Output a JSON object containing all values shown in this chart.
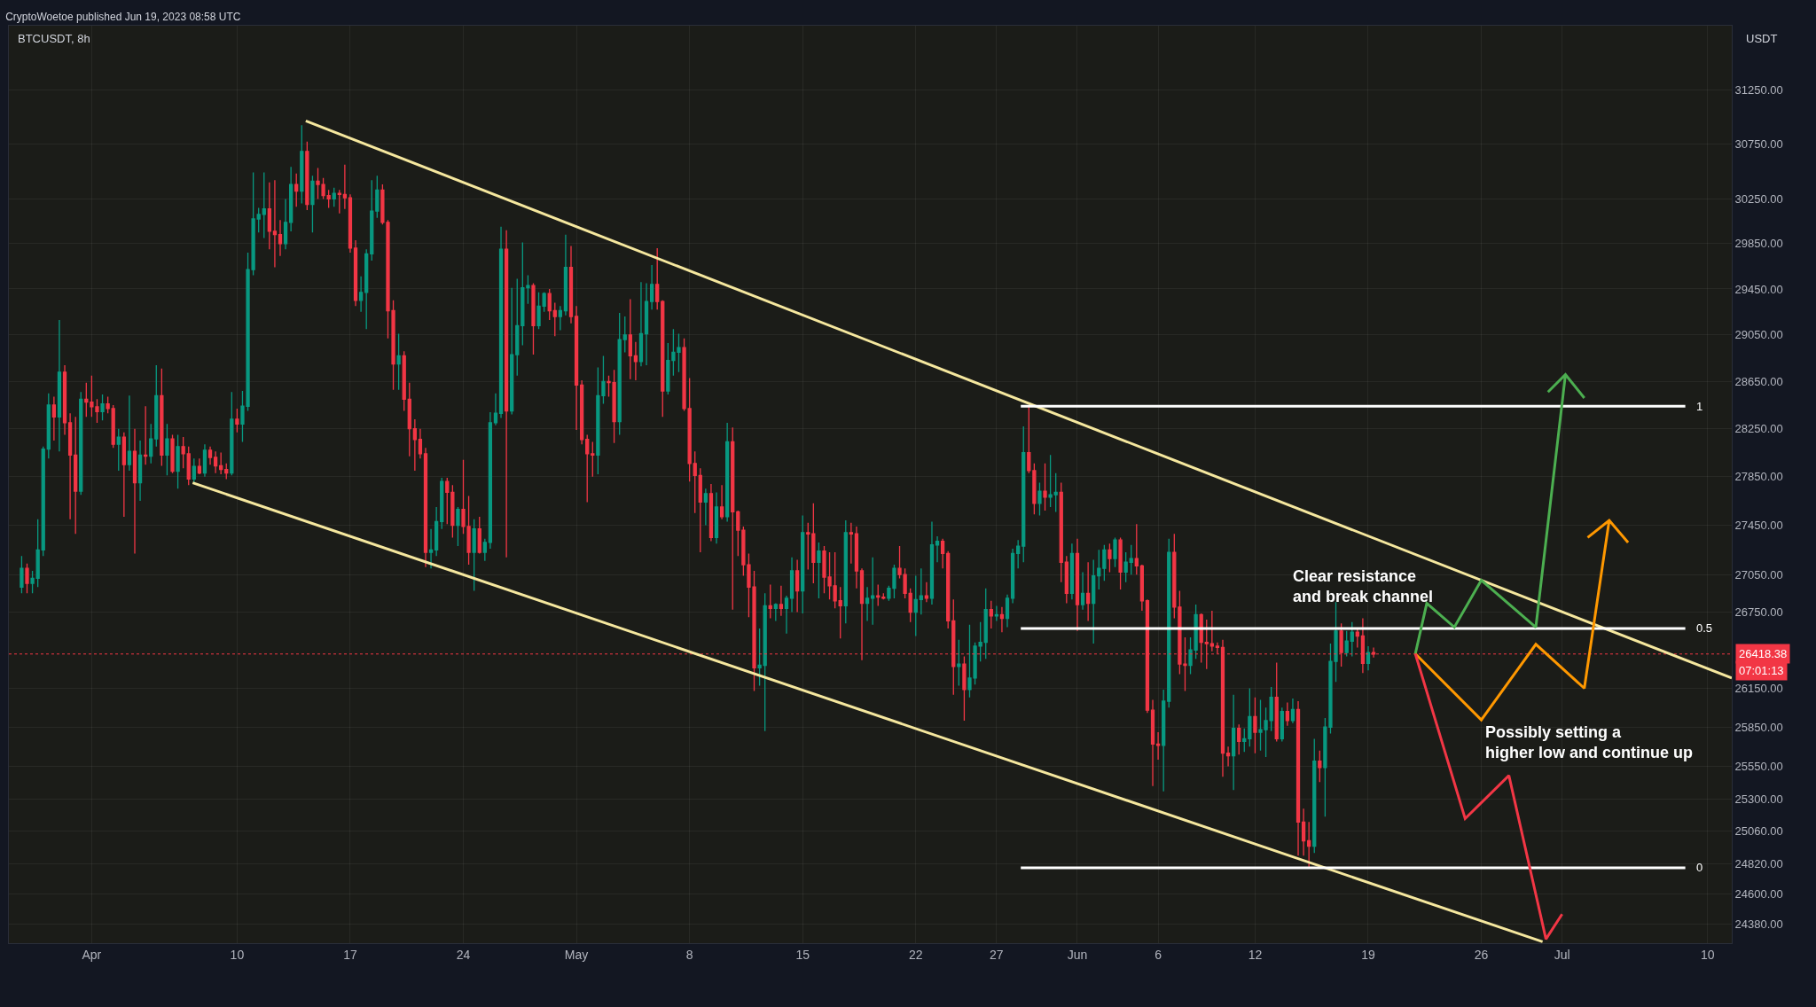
{
  "chart_data": {
    "type": "candlestick",
    "title": "CryptoWoetoe published Jun 19, 2023 08:58 UTC",
    "subtitle": "BTCUSDT, 8h",
    "ylabel": "USDT",
    "colors": [
      "#089981",
      "#f23645",
      "#089981",
      "#089981",
      "#089981",
      "#089981",
      "#f23645",
      "#089981",
      "#f23645",
      "#f23645",
      "#f23645",
      "#089981",
      "#f23645",
      "#f23645",
      "#f23645",
      "#089981",
      "#f23645",
      "#f23645",
      "#089981",
      "#f23645",
      "#089981",
      "#f23645",
      "#089981",
      "#f23645",
      "#089981",
      "#089981",
      "#f23645",
      "#089981",
      "#f23645",
      "#089981",
      "#f23645",
      "#f23645",
      "#089981",
      "#f23645",
      "#089981",
      "#f23645",
      "#f23645",
      "#f23645",
      "#f23645",
      "#089981",
      "#f23645",
      "#089981",
      "#089981",
      "#089981",
      "#089981",
      "#089981",
      "#f23645",
      "#f23645",
      "#f23645",
      "#089981",
      "#089981",
      "#f23645",
      "#089981",
      "#f23645",
      "#089981",
      "#f23645",
      "#f23645",
      "#f23645",
      "#089981",
      "#f23645",
      "#f23645",
      "#f23645",
      "#f23645",
      "#089981",
      "#089981",
      "#089981",
      "#089981",
      "#f23645",
      "#f23645",
      "#f23645",
      "#089981",
      "#f23645",
      "#f23645",
      "#f23645",
      "#f23645",
      "#f23645",
      "#089981",
      "#089981",
      "#089981",
      "#f23645",
      "#f23645",
      "#089981",
      "#f23645",
      "#f23645",
      "#089981",
      "#f23645",
      "#089981",
      "#089981",
      "#089981",
      "#089981",
      "#f23645",
      "#089981",
      "#089981",
      "#089981",
      "#089981",
      "#f23645",
      "#089981",
      "#089981",
      "#f23645",
      "#f23645",
      "#089981",
      "#089981",
      "#f23645",
      "#f23645",
      "#f23645",
      "#f23645",
      "#f23645",
      "#089981",
      "#089981",
      "#f23645",
      "#f23645",
      "#089981",
      "#089981",
      "#f23645",
      "#f23645",
      "#089981",
      "#089981",
      "#089981",
      "#f23645",
      "#f23645",
      "#089981",
      "#089981",
      "#089981",
      "#f23645",
      "#f23645",
      "#f23645",
      "#f23645",
      "#089981",
      "#f23645",
      "#089981",
      "#f23645",
      "#089981",
      "#f23645",
      "#f23645",
      "#f23645",
      "#f23645",
      "#f23645",
      "#089981",
      "#089981",
      "#f23645",
      "#089981",
      "#f23645",
      "#089981",
      "#089981",
      "#f23645",
      "#089981",
      "#f23645",
      "#f23645",
      "#089981",
      "#f23645",
      "#f23645",
      "#f23645",
      "#f23645",
      "#089981",
      "#f23645",
      "#f23645",
      "#f23645",
      "#089981",
      "#089981",
      "#f23645",
      "#f23645",
      "#089981",
      "#089981",
      "#f23645",
      "#f23645",
      "#f23645",
      "#089981",
      "#089981",
      "#f23645",
      "#089981",
      "#089981",
      "#f23645",
      "#f23645",
      "#f23645",
      "#089981",
      "#f23645",
      "#089981",
      "#089981",
      "#089981",
      "#089981",
      "#f23645",
      "#089981",
      "#f23645",
      "#089981",
      "#089981",
      "#089981",
      "#089981",
      "#f23645",
      "#f23645",
      "#089981",
      "#f23645",
      "#089981",
      "#089981",
      "#f23645",
      "#f23645",
      "#089981",
      "#f23645",
      "#089981",
      "#f23645",
      "#089981",
      "#089981",
      "#089981",
      "#f23645",
      "#089981",
      "#f23645",
      "#089981",
      "#089981",
      "#f23645",
      "#f23645",
      "#f23645",
      "#f23645",
      "#f23645",
      "#089981",
      "#089981",
      "#f23645",
      "#f23645",
      "#f23645",
      "#089981",
      "#089981",
      "#f23645",
      "#f23645",
      "#f23645",
      "#f23645",
      "#f23645",
      "#f23645",
      "#089981",
      "#f23645",
      "#089981",
      "#089981",
      "#f23645",
      "#089981",
      "#089981",
      "#089981",
      "#f23645",
      "#089981",
      "#f23645",
      "#089981",
      "#f23645",
      "#f23645",
      "#f23645",
      "#089981",
      "#f23645",
      "#089981",
      "#089981",
      "#089981",
      "#f23645",
      "#089981",
      "#089981",
      "#f23645",
      "#f23645",
      "#089981",
      "#f23645"
    ],
    "log": true,
    "grid": true,
    "xlim": [
      "2023-03-26T21:00",
      "2023-07-11T12:00"
    ],
    "ylim": [
      24240,
      31850
    ],
    "xticks": [
      {
        "value": "2023-04-01",
        "label": "Apr"
      },
      {
        "value": "2023-04-10",
        "label": "10"
      },
      {
        "value": "2023-04-17",
        "label": "17"
      },
      {
        "value": "2023-04-24",
        "label": "24"
      },
      {
        "value": "2023-05-01",
        "label": "May"
      },
      {
        "value": "2023-05-08",
        "label": "8"
      },
      {
        "value": "2023-05-15",
        "label": "15"
      },
      {
        "value": "2023-05-22",
        "label": "22"
      },
      {
        "value": "2023-05-27",
        "label": "27"
      },
      {
        "value": "2023-06-01",
        "label": "Jun"
      },
      {
        "value": "2023-06-06",
        "label": "6"
      },
      {
        "value": "2023-06-12",
        "label": "12"
      },
      {
        "value": "2023-06-19",
        "label": "19"
      },
      {
        "value": "2023-06-26",
        "label": "26"
      },
      {
        "value": "2023-07-01",
        "label": "Jul"
      },
      {
        "value": "2023-07-10",
        "label": "10"
      }
    ],
    "yticks": [
      {
        "value": 24380,
        "label": "24380.00"
      },
      {
        "value": 24600,
        "label": "24600.00"
      },
      {
        "value": 24820,
        "label": "24820.00"
      },
      {
        "value": 25060,
        "label": "25060.00"
      },
      {
        "value": 25300,
        "label": "25300.00"
      },
      {
        "value": 25550,
        "label": "25550.00"
      },
      {
        "value": 25850,
        "label": "25850.00"
      },
      {
        "value": 26150,
        "label": "26150.00"
      },
      {
        "value": 26750,
        "label": "26750.00"
      },
      {
        "value": 27050,
        "label": "27050.00"
      },
      {
        "value": 27450,
        "label": "27450.00"
      },
      {
        "value": 27850,
        "label": "27850.00"
      },
      {
        "value": 28250,
        "label": "28250.00"
      },
      {
        "value": 28650,
        "label": "28650.00"
      },
      {
        "value": 29050,
        "label": "29050.00"
      },
      {
        "value": 29450,
        "label": "29450.00"
      },
      {
        "value": 29850,
        "label": "29850.00"
      },
      {
        "value": 30250,
        "label": "30250.00"
      },
      {
        "value": 30750,
        "label": "30750.00"
      },
      {
        "value": 31250,
        "label": "31250.00"
      }
    ],
    "ref_lines": [
      {
        "axis": "y",
        "value": 26418.38,
        "label": "26418.38",
        "color": "#f23645",
        "line_style": "dotted"
      }
    ],
    "annotations": [
      "Clear resistance\nand break channel",
      "Possibly setting a\nhigher low and continue up",
      "07:01:13"
    ],
    "series": [
      {
        "type": "line",
        "color": "#f5e79e",
        "x": [
          "2023-04-14T06:00",
          "2023-07-11T12:00"
        ],
        "values": [
          30960,
          26230
        ]
      },
      {
        "type": "line",
        "color": "#f5e79e",
        "x": [
          "2023-04-07T06:00",
          "2023-06-29T19:00"
        ],
        "values": [
          27800,
          24250
        ]
      },
      {
        "type": "line",
        "name": "1",
        "color": "#ffffff",
        "x": [
          "2023-05-28T12:00",
          "2023-07-08T15:00"
        ],
        "values": [
          28440,
          28440
        ]
      },
      {
        "type": "line",
        "name": "0.5",
        "color": "#ffffff",
        "x": [
          "2023-05-28T12:00",
          "2023-07-08T15:00"
        ],
        "values": [
          26620,
          26620
        ]
      },
      {
        "type": "line",
        "name": "0",
        "color": "#ffffff",
        "x": [
          "2023-05-28T12:00",
          "2023-07-08T15:00"
        ],
        "values": [
          24790,
          24790
        ]
      },
      {
        "type": "line",
        "color": "#4caf50",
        "x": [
          "2023-06-21T22:00",
          "2023-06-22T15:00",
          "2023-06-24T08:00",
          "2023-06-26T00:00",
          "2023-06-29T09:00",
          "2023-07-01T05:00",
          "2023-06-30T03:00",
          "2023-07-01T05:00",
          "2023-07-02T09:00"
        ],
        "values": [
          26420,
          26820,
          26630,
          27005,
          26630,
          28710,
          28560,
          28710,
          28510
        ]
      },
      {
        "type": "line",
        "color": "#ff9800",
        "x": [
          "2023-06-21T22:00",
          "2023-06-26T00:00",
          "2023-06-29T09:00",
          "2023-07-02T09:00",
          "2023-07-03T22:00",
          "2023-07-02T14:00",
          "2023-07-03T22:00",
          "2023-07-05T02:00"
        ],
        "values": [
          26420,
          25905,
          26495,
          26150,
          27490,
          27350,
          27490,
          27310
        ]
      },
      {
        "type": "line",
        "color": "#f23645",
        "x": [
          "2023-06-21T22:00",
          "2023-06-25T00:00",
          "2023-06-27T17:00",
          "2023-06-30T00:00",
          "2023-07-01T00:00"
        ],
        "values": [
          26420,
          25155,
          25480,
          24270,
          24450
        ]
      }
    ],
    "x": [
      "2023-03-27T16:00",
      "2023-03-28T00:00",
      "2023-03-28T08:00",
      "2023-03-28T16:00",
      "2023-03-29T00:00",
      "2023-03-29T08:00",
      "2023-03-29T16:00",
      "2023-03-30T00:00",
      "2023-03-30T08:00",
      "2023-03-30T16:00",
      "2023-03-31T00:00",
      "2023-03-31T08:00",
      "2023-03-31T16:00",
      "2023-04-01T00:00",
      "2023-04-01T08:00",
      "2023-04-01T16:00",
      "2023-04-02T00:00",
      "2023-04-02T08:00",
      "2023-04-02T16:00",
      "2023-04-03T00:00",
      "2023-04-03T08:00",
      "2023-04-03T16:00",
      "2023-04-04T00:00",
      "2023-04-04T08:00",
      "2023-04-04T16:00",
      "2023-04-05T00:00",
      "2023-04-05T08:00",
      "2023-04-05T16:00",
      "2023-04-06T00:00",
      "2023-04-06T08:00",
      "2023-04-06T16:00",
      "2023-04-07T00:00",
      "2023-04-07T08:00",
      "2023-04-07T16:00",
      "2023-04-08T00:00",
      "2023-04-08T08:00",
      "2023-04-08T16:00",
      "2023-04-09T00:00",
      "2023-04-09T08:00",
      "2023-04-09T16:00",
      "2023-04-10T00:00",
      "2023-04-10T08:00",
      "2023-04-10T16:00",
      "2023-04-11T00:00",
      "2023-04-11T08:00",
      "2023-04-11T16:00",
      "2023-04-12T00:00",
      "2023-04-12T08:00",
      "2023-04-12T16:00",
      "2023-04-13T00:00",
      "2023-04-13T08:00",
      "2023-04-13T16:00",
      "2023-04-14T00:00",
      "2023-04-14T08:00",
      "2023-04-14T16:00",
      "2023-04-15T00:00",
      "2023-04-15T08:00",
      "2023-04-15T16:00",
      "2023-04-16T00:00",
      "2023-04-16T08:00",
      "2023-04-16T16:00",
      "2023-04-17T00:00",
      "2023-04-17T08:00",
      "2023-04-17T16:00",
      "2023-04-18T00:00",
      "2023-04-18T08:00",
      "2023-04-18T16:00",
      "2023-04-19T00:00",
      "2023-04-19T08:00",
      "2023-04-19T16:00",
      "2023-04-20T00:00",
      "2023-04-20T08:00",
      "2023-04-20T16:00",
      "2023-04-21T00:00",
      "2023-04-21T08:00",
      "2023-04-21T16:00",
      "2023-04-22T00:00",
      "2023-04-22T08:00",
      "2023-04-22T16:00",
      "2023-04-23T00:00",
      "2023-04-23T08:00",
      "2023-04-23T16:00",
      "2023-04-24T00:00",
      "2023-04-24T08:00",
      "2023-04-24T16:00",
      "2023-04-25T00:00",
      "2023-04-25T08:00",
      "2023-04-25T16:00",
      "2023-04-26T00:00",
      "2023-04-26T08:00",
      "2023-04-26T16:00",
      "2023-04-27T00:00",
      "2023-04-27T08:00",
      "2023-04-27T16:00",
      "2023-04-28T00:00",
      "2023-04-28T08:00",
      "2023-04-28T16:00",
      "2023-04-29T00:00",
      "2023-04-29T08:00",
      "2023-04-29T16:00",
      "2023-04-30T00:00",
      "2023-04-30T08:00",
      "2023-04-30T16:00",
      "2023-05-01T00:00",
      "2023-05-01T08:00",
      "2023-05-01T16:00",
      "2023-05-02T00:00",
      "2023-05-02T08:00",
      "2023-05-02T16:00",
      "2023-05-03T00:00",
      "2023-05-03T08:00",
      "2023-05-03T16:00",
      "2023-05-04T00:00",
      "2023-05-04T08:00",
      "2023-05-04T16:00",
      "2023-05-05T00:00",
      "2023-05-05T08:00",
      "2023-05-05T16:00",
      "2023-05-06T00:00",
      "2023-05-06T08:00",
      "2023-05-06T16:00",
      "2023-05-07T00:00",
      "2023-05-07T08:00",
      "2023-05-07T16:00",
      "2023-05-08T00:00",
      "2023-05-08T08:00",
      "2023-05-08T16:00",
      "2023-05-09T00:00",
      "2023-05-09T08:00",
      "2023-05-09T16:00",
      "2023-05-10T00:00",
      "2023-05-10T08:00",
      "2023-05-10T16:00",
      "2023-05-11T00:00",
      "2023-05-11T08:00",
      "2023-05-11T16:00",
      "2023-05-12T00:00",
      "2023-05-12T08:00",
      "2023-05-12T16:00",
      "2023-05-13T00:00",
      "2023-05-13T08:00",
      "2023-05-13T16:00",
      "2023-05-14T00:00",
      "2023-05-14T08:00",
      "2023-05-14T16:00",
      "2023-05-15T00:00",
      "2023-05-15T08:00",
      "2023-05-15T16:00",
      "2023-05-16T00:00",
      "2023-05-16T08:00",
      "2023-05-16T16:00",
      "2023-05-17T00:00",
      "2023-05-17T08:00",
      "2023-05-17T16:00",
      "2023-05-18T00:00",
      "2023-05-18T08:00",
      "2023-05-18T16:00",
      "2023-05-19T00:00",
      "2023-05-19T08:00",
      "2023-05-19T16:00",
      "2023-05-20T00:00",
      "2023-05-20T08:00",
      "2023-05-20T16:00",
      "2023-05-21T00:00",
      "2023-05-21T08:00",
      "2023-05-21T16:00",
      "2023-05-22T00:00",
      "2023-05-22T08:00",
      "2023-05-22T16:00",
      "2023-05-23T00:00",
      "2023-05-23T08:00",
      "2023-05-23T16:00",
      "2023-05-24T00:00",
      "2023-05-24T08:00",
      "2023-05-24T16:00",
      "2023-05-25T00:00",
      "2023-05-25T08:00",
      "2023-05-25T16:00",
      "2023-05-26T00:00",
      "2023-05-26T08:00",
      "2023-05-26T16:00",
      "2023-05-27T00:00",
      "2023-05-27T08:00",
      "2023-05-27T16:00",
      "2023-05-28T00:00",
      "2023-05-28T08:00",
      "2023-05-28T16:00",
      "2023-05-29T00:00",
      "2023-05-29T08:00",
      "2023-05-29T16:00",
      "2023-05-30T00:00",
      "2023-05-30T08:00",
      "2023-05-30T16:00",
      "2023-05-31T00:00",
      "2023-05-31T08:00",
      "2023-05-31T16:00",
      "2023-06-01T00:00",
      "2023-06-01T08:00",
      "2023-06-01T16:00",
      "2023-06-02T00:00",
      "2023-06-02T08:00",
      "2023-06-02T16:00",
      "2023-06-03T00:00",
      "2023-06-03T08:00",
      "2023-06-03T16:00",
      "2023-06-04T00:00",
      "2023-06-04T08:00",
      "2023-06-04T16:00",
      "2023-06-05T00:00",
      "2023-06-05T08:00",
      "2023-06-05T16:00",
      "2023-06-06T00:00",
      "2023-06-06T08:00",
      "2023-06-06T16:00",
      "2023-06-07T00:00",
      "2023-06-07T08:00",
      "2023-06-07T16:00",
      "2023-06-08T00:00",
      "2023-06-08T08:00",
      "2023-06-08T16:00",
      "2023-06-09T00:00",
      "2023-06-09T08:00",
      "2023-06-09T16:00",
      "2023-06-10T00:00",
      "2023-06-10T08:00",
      "2023-06-10T16:00",
      "2023-06-11T00:00",
      "2023-06-11T08:00",
      "2023-06-11T16:00",
      "2023-06-12T00:00",
      "2023-06-12T08:00",
      "2023-06-12T16:00",
      "2023-06-13T00:00",
      "2023-06-13T08:00",
      "2023-06-13T16:00",
      "2023-06-14T00:00",
      "2023-06-14T08:00",
      "2023-06-14T16:00",
      "2023-06-15T00:00",
      "2023-06-15T08:00",
      "2023-06-15T16:00",
      "2023-06-16T00:00",
      "2023-06-16T08:00",
      "2023-06-16T16:00",
      "2023-06-17T00:00",
      "2023-06-17T08:00",
      "2023-06-17T16:00",
      "2023-06-18T00:00",
      "2023-06-18T08:00",
      "2023-06-18T16:00",
      "2023-06-19T00:00",
      "2023-06-19T08:00"
    ],
    "ohlc": [
      [
        26950,
        27200,
        26900,
        27100
      ],
      [
        27100,
        27140,
        26900,
        26980
      ],
      [
        26980,
        27080,
        26900,
        27020
      ],
      [
        27020,
        27500,
        26950,
        27250
      ],
      [
        27250,
        28100,
        27200,
        28080
      ],
      [
        28080,
        28550,
        28000,
        28450
      ],
      [
        28450,
        28520,
        28150,
        28350
      ],
      [
        28350,
        29180,
        28060,
        28730
      ],
      [
        28730,
        28790,
        28200,
        28300
      ],
      [
        28300,
        28380,
        27500,
        28030
      ],
      [
        28030,
        28350,
        27380,
        27730
      ],
      [
        27730,
        28560,
        27700,
        28500
      ],
      [
        28500,
        28640,
        28350,
        28475
      ],
      [
        28475,
        28700,
        28350,
        28435
      ],
      [
        28435,
        28500,
        28300,
        28395
      ],
      [
        28395,
        28540,
        28320,
        28460
      ],
      [
        28460,
        28520,
        28380,
        28420
      ],
      [
        28420,
        28450,
        28090,
        28120
      ],
      [
        28120,
        28250,
        27900,
        28180
      ],
      [
        28180,
        28220,
        27520,
        27950
      ],
      [
        27950,
        28530,
        27900,
        28060
      ],
      [
        28060,
        28250,
        27220,
        27800
      ],
      [
        27800,
        28150,
        27650,
        28030
      ],
      [
        28030,
        28440,
        27950,
        28020
      ],
      [
        28020,
        28290,
        27960,
        28165
      ],
      [
        28165,
        28790,
        28100,
        28530
      ],
      [
        28530,
        28760,
        27940,
        28030
      ],
      [
        28030,
        28290,
        27860,
        28165
      ],
      [
        28165,
        28200,
        27880,
        27895
      ],
      [
        27895,
        28200,
        27750,
        28100
      ],
      [
        28100,
        28180,
        27920,
        28040
      ],
      [
        28040,
        28100,
        27780,
        27830
      ],
      [
        27830,
        28000,
        27800,
        27935
      ],
      [
        27935,
        28000,
        27870,
        27880
      ],
      [
        27880,
        28120,
        27850,
        28070
      ],
      [
        28070,
        28100,
        27950,
        28010
      ],
      [
        28010,
        28060,
        27880,
        27940
      ],
      [
        27940,
        28050,
        27870,
        27910
      ],
      [
        27910,
        27960,
        27830,
        27880
      ],
      [
        27880,
        28560,
        27860,
        28330
      ],
      [
        28330,
        28420,
        28220,
        28290
      ],
      [
        28290,
        28570,
        28140,
        28440
      ],
      [
        28440,
        29770,
        28400,
        29620
      ],
      [
        29620,
        30490,
        29570,
        30070
      ],
      [
        30070,
        30170,
        29950,
        30110
      ],
      [
        30110,
        30490,
        29900,
        30160
      ],
      [
        30160,
        30400,
        29800,
        29960
      ],
      [
        29960,
        30420,
        29640,
        29930
      ],
      [
        29930,
        30060,
        29740,
        29850
      ],
      [
        29850,
        30250,
        29800,
        30040
      ],
      [
        30040,
        30540,
        29960,
        30380
      ],
      [
        30380,
        30480,
        30180,
        30320
      ],
      [
        30320,
        30920,
        30210,
        30680
      ],
      [
        30680,
        30770,
        30150,
        30200
      ],
      [
        30200,
        30460,
        29950,
        30410
      ],
      [
        30410,
        30530,
        30250,
        30380
      ],
      [
        30380,
        30440,
        30250,
        30280
      ],
      [
        30280,
        30330,
        30170,
        30250
      ],
      [
        30250,
        30350,
        30180,
        30300
      ],
      [
        30300,
        30330,
        30120,
        30290
      ],
      [
        30290,
        30560,
        30160,
        30260
      ],
      [
        30260,
        30290,
        29770,
        29810
      ],
      [
        29810,
        29880,
        29300,
        29350
      ],
      [
        29350,
        29560,
        29250,
        29420
      ],
      [
        29420,
        29800,
        29100,
        29760
      ],
      [
        29760,
        30420,
        29700,
        30140
      ],
      [
        30140,
        30460,
        30080,
        30330
      ],
      [
        30330,
        30380,
        30020,
        30040
      ],
      [
        30040,
        30060,
        29020,
        29260
      ],
      [
        29260,
        29350,
        28580,
        28800
      ],
      [
        28800,
        29060,
        28580,
        28870
      ],
      [
        28870,
        28910,
        28400,
        28500
      ],
      [
        28500,
        28640,
        28020,
        28250
      ],
      [
        28250,
        28330,
        27900,
        28160
      ],
      [
        28160,
        28250,
        28000,
        28040
      ],
      [
        28040,
        28090,
        27110,
        27230
      ],
      [
        27230,
        27420,
        27100,
        27250
      ],
      [
        27250,
        27600,
        27200,
        27480
      ],
      [
        27480,
        27840,
        27420,
        27810
      ],
      [
        27810,
        27840,
        27460,
        27720
      ],
      [
        27720,
        27780,
        27350,
        27450
      ],
      [
        27450,
        27600,
        27280,
        27580
      ],
      [
        27580,
        27990,
        27380,
        27440
      ],
      [
        27440,
        27690,
        27130,
        27230
      ],
      [
        27230,
        27500,
        26920,
        27420
      ],
      [
        27420,
        27520,
        27220,
        27230
      ],
      [
        27230,
        27340,
        27160,
        27310
      ],
      [
        27310,
        28390,
        27260,
        28300
      ],
      [
        28300,
        28550,
        28280,
        28380
      ],
      [
        28380,
        30000,
        28340,
        29800
      ],
      [
        29800,
        29970,
        27190,
        28400
      ],
      [
        28400,
        29460,
        28370,
        28880
      ],
      [
        28880,
        29540,
        28700,
        29130
      ],
      [
        29130,
        29860,
        28960,
        29460
      ],
      [
        29460,
        29570,
        29320,
        29480
      ],
      [
        29480,
        29500,
        28880,
        29130
      ],
      [
        29130,
        29420,
        29100,
        29300
      ],
      [
        29300,
        29420,
        29250,
        29410
      ],
      [
        29410,
        29450,
        29180,
        29260
      ],
      [
        29260,
        29330,
        29040,
        29210
      ],
      [
        29210,
        29300,
        29090,
        29260
      ],
      [
        29260,
        29930,
        29220,
        29640
      ],
      [
        29640,
        29830,
        29150,
        29210
      ],
      [
        29210,
        29300,
        28240,
        28620
      ],
      [
        28620,
        28660,
        28120,
        28160
      ],
      [
        28160,
        28200,
        27640,
        28040
      ],
      [
        28040,
        28140,
        27850,
        28030
      ],
      [
        28030,
        28770,
        27870,
        28530
      ],
      [
        28530,
        28870,
        28460,
        28650
      ],
      [
        28650,
        28700,
        28520,
        28640
      ],
      [
        28640,
        28750,
        28130,
        28310
      ],
      [
        28310,
        29240,
        28200,
        29010
      ],
      [
        29010,
        29210,
        28900,
        29050
      ],
      [
        29050,
        29360,
        28670,
        28870
      ],
      [
        28870,
        28990,
        28660,
        28820
      ],
      [
        28820,
        29510,
        28780,
        29060
      ],
      [
        29060,
        29500,
        28790,
        29340
      ],
      [
        29340,
        29660,
        29270,
        29490
      ],
      [
        29490,
        29810,
        29270,
        29340
      ],
      [
        29340,
        29350,
        28350,
        28570
      ],
      [
        28570,
        28980,
        28540,
        28830
      ],
      [
        28830,
        29100,
        28700,
        28900
      ],
      [
        28900,
        29060,
        28730,
        28940
      ],
      [
        28940,
        29020,
        28400,
        28420
      ],
      [
        28420,
        28680,
        27810,
        27960
      ],
      [
        27960,
        28060,
        27550,
        27860
      ],
      [
        27860,
        27920,
        27230,
        27640
      ],
      [
        27640,
        27750,
        27450,
        27710
      ],
      [
        27710,
        27790,
        27320,
        27350
      ],
      [
        27350,
        27720,
        27300,
        27600
      ],
      [
        27600,
        27780,
        27500,
        27520
      ],
      [
        27520,
        28300,
        27480,
        28140
      ],
      [
        28140,
        28260,
        26770,
        27560
      ],
      [
        27560,
        27570,
        27200,
        27410
      ],
      [
        27410,
        27440,
        27040,
        27130
      ],
      [
        27130,
        27220,
        26710,
        26950
      ],
      [
        26950,
        27080,
        26130,
        26310
      ],
      [
        26310,
        26620,
        26170,
        26330
      ],
      [
        26330,
        26900,
        25820,
        26800
      ],
      [
        26800,
        26970,
        26700,
        26780
      ],
      [
        26780,
        26820,
        26680,
        26810
      ],
      [
        26810,
        26960,
        26720,
        26780
      ],
      [
        26780,
        26880,
        26580,
        26860
      ],
      [
        26860,
        27190,
        26750,
        27080
      ],
      [
        27080,
        27170,
        26750,
        26920
      ],
      [
        26920,
        27530,
        26740,
        27390
      ],
      [
        27390,
        27470,
        27090,
        27380
      ],
      [
        27380,
        27630,
        26980,
        27150
      ],
      [
        27150,
        27310,
        26860,
        27240
      ],
      [
        27240,
        27280,
        26900,
        27030
      ],
      [
        27030,
        27230,
        26850,
        26960
      ],
      [
        26960,
        27230,
        26780,
        26840
      ],
      [
        26840,
        26950,
        26540,
        26800
      ],
      [
        26800,
        27490,
        26660,
        27390
      ],
      [
        27390,
        27470,
        27140,
        27380
      ],
      [
        27380,
        27440,
        26940,
        27080
      ],
      [
        27080,
        27100,
        26370,
        26820
      ],
      [
        26820,
        26950,
        26680,
        26860
      ],
      [
        26860,
        27190,
        26650,
        26880
      ],
      [
        26880,
        26970,
        26800,
        26870
      ],
      [
        26870,
        26900,
        26850,
        26860
      ],
      [
        26860,
        26960,
        26840,
        26940
      ],
      [
        26940,
        27130,
        26860,
        27100
      ],
      [
        27100,
        27280,
        27020,
        27050
      ],
      [
        27050,
        27100,
        26860,
        26900
      ],
      [
        26900,
        26940,
        26670,
        26750
      ],
      [
        26750,
        27040,
        26560,
        26850
      ],
      [
        26850,
        27100,
        26730,
        26880
      ],
      [
        26880,
        26990,
        26830,
        26860
      ],
      [
        26860,
        27480,
        26810,
        27290
      ],
      [
        27290,
        27360,
        27150,
        27320
      ],
      [
        27320,
        27340,
        27100,
        27220
      ],
      [
        27220,
        27240,
        26620,
        26680
      ],
      [
        26680,
        26850,
        26100,
        26320
      ],
      [
        26320,
        26530,
        26170,
        26340
      ],
      [
        26340,
        26400,
        25900,
        26140
      ],
      [
        26140,
        26650,
        26080,
        26230
      ],
      [
        26230,
        26510,
        26180,
        26480
      ],
      [
        26480,
        26670,
        26360,
        26510
      ],
      [
        26510,
        26940,
        26380,
        26770
      ],
      [
        26770,
        26840,
        26620,
        26720
      ],
      [
        26720,
        26800,
        26680,
        26730
      ],
      [
        26730,
        26790,
        26590,
        26700
      ],
      [
        26700,
        26890,
        26630,
        26860
      ],
      [
        26860,
        27260,
        26820,
        27220
      ],
      [
        27220,
        27330,
        27100,
        27280
      ],
      [
        27280,
        28270,
        27150,
        28050
      ],
      [
        28050,
        28440,
        27880,
        27900
      ],
      [
        27900,
        27960,
        27540,
        27630
      ],
      [
        27630,
        27800,
        27530,
        27730
      ],
      [
        27730,
        27960,
        27570,
        27680
      ],
      [
        27680,
        28030,
        27600,
        27700
      ],
      [
        27700,
        27880,
        27560,
        27720
      ],
      [
        27720,
        27800,
        26990,
        27150
      ],
      [
        27150,
        27200,
        26820,
        26900
      ],
      [
        26900,
        27300,
        26850,
        27220
      ],
      [
        27220,
        27340,
        26600,
        26810
      ],
      [
        26810,
        27070,
        26770,
        26900
      ],
      [
        26900,
        27150,
        26680,
        26820
      ],
      [
        26820,
        27170,
        26500,
        27040
      ],
      [
        27040,
        27250,
        26930,
        27100
      ],
      [
        27100,
        27290,
        27000,
        27250
      ],
      [
        27250,
        27300,
        27070,
        27180
      ],
      [
        27180,
        27350,
        27110,
        27330
      ],
      [
        27330,
        27350,
        26930,
        27070
      ],
      [
        27070,
        27230,
        26990,
        27150
      ],
      [
        27150,
        27290,
        27050,
        27180
      ],
      [
        27180,
        27460,
        27050,
        27120
      ],
      [
        27120,
        27130,
        26760,
        26840
      ],
      [
        26840,
        26850,
        25960,
        25980
      ],
      [
        25980,
        26060,
        25400,
        25720
      ],
      [
        25720,
        25810,
        25600,
        25710
      ],
      [
        25710,
        26140,
        25360,
        26050
      ],
      [
        26050,
        27340,
        26000,
        27230
      ],
      [
        27230,
        27380,
        26700,
        26790
      ],
      [
        26790,
        26920,
        26260,
        26340
      ],
      [
        26340,
        26550,
        26130,
        26330
      ],
      [
        26330,
        26550,
        26260,
        26450
      ],
      [
        26450,
        26810,
        26380,
        26730
      ],
      [
        26730,
        26740,
        26350,
        26510
      ],
      [
        26510,
        26690,
        26300,
        26500
      ],
      [
        26500,
        26760,
        26440,
        26480
      ],
      [
        26480,
        26510,
        26420,
        26470
      ],
      [
        26470,
        26530,
        25470,
        25650
      ],
      [
        25650,
        25700,
        25550,
        25630
      ],
      [
        25630,
        26100,
        25370,
        25840
      ],
      [
        25840,
        25870,
        25640,
        25740
      ],
      [
        25740,
        25840,
        25660,
        25760
      ],
      [
        25760,
        26150,
        25700,
        25930
      ],
      [
        25930,
        26080,
        25650,
        25810
      ],
      [
        25810,
        26060,
        25670,
        25830
      ],
      [
        25830,
        26000,
        25620,
        25900
      ],
      [
        25900,
        26160,
        25820,
        26080
      ],
      [
        26080,
        26350,
        25740,
        25760
      ],
      [
        25760,
        26000,
        25740,
        25970
      ],
      [
        25970,
        26040,
        25860,
        25900
      ],
      [
        25900,
        26070,
        25880,
        25985
      ],
      [
        25985,
        26050,
        24880,
        25130
      ],
      [
        25130,
        25230,
        24880,
        24990
      ],
      [
        24990,
        25130,
        24790,
        24950
      ],
      [
        24950,
        25760,
        24900,
        25590
      ],
      [
        25590,
        25670,
        25430,
        25540
      ],
      [
        25540,
        25920,
        25170,
        25850
      ],
      [
        25850,
        26500,
        25800,
        26360
      ],
      [
        26360,
        26830,
        26200,
        26600
      ],
      [
        26600,
        26660,
        26320,
        26430
      ],
      [
        26430,
        26600,
        26400,
        26520
      ],
      [
        26520,
        26670,
        26400,
        26590
      ],
      [
        26590,
        26620,
        26470,
        26560
      ],
      [
        26560,
        26700,
        26270,
        26345
      ],
      [
        26345,
        26480,
        26290,
        26430
      ],
      [
        26430,
        26470,
        26390,
        26418.38
      ]
    ]
  }
}
